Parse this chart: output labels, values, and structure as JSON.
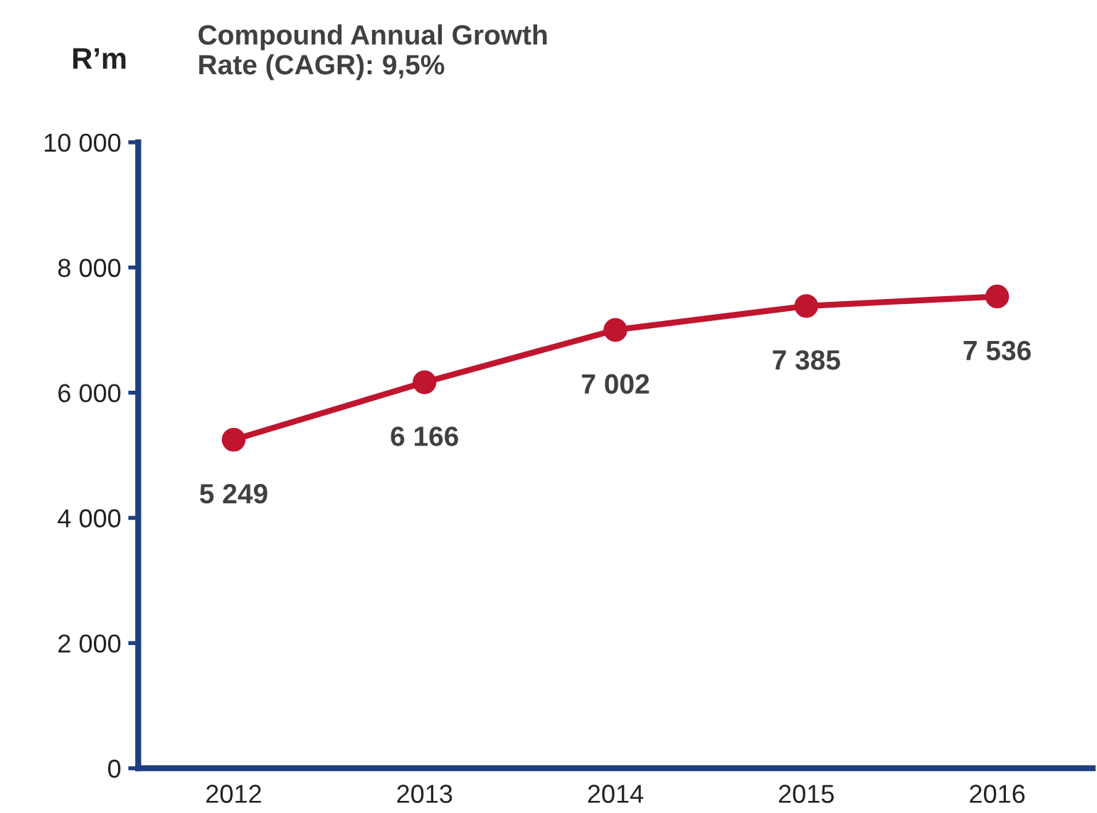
{
  "chart_data": {
    "type": "line",
    "title": "Compound Annual Growth\nRate (CAGR): 9,5%",
    "ylabel": "R’m",
    "categories": [
      "2012",
      "2013",
      "2014",
      "2015",
      "2016"
    ],
    "series": [
      {
        "color": "#c0152f",
        "values": [
          5249,
          6166,
          7002,
          7385,
          7536
        ],
        "value_labels": [
          "5 249",
          "6 166",
          "7 002",
          "7 385",
          "7 536"
        ]
      }
    ],
    "ylim": [
      0,
      10000
    ],
    "yticks": [
      {
        "value": 0,
        "label": "0"
      },
      {
        "value": 2000,
        "label": "2 000"
      },
      {
        "value": 4000,
        "label": "4 000"
      },
      {
        "value": 6000,
        "label": "6 000"
      },
      {
        "value": 8000,
        "label": "8 000"
      },
      {
        "value": 10000,
        "label": "10 000"
      }
    ],
    "grid": false,
    "legend": false,
    "marker": "circle",
    "line_style": "solid"
  }
}
